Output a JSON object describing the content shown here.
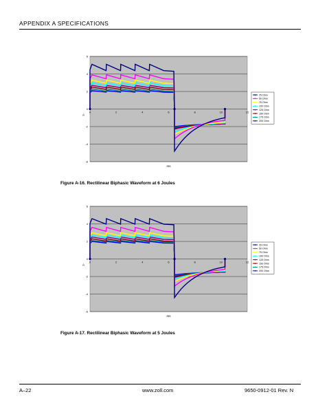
{
  "header": {
    "title": "APPENDIX A   SPECIFICATIONS"
  },
  "figures": [
    {
      "caption": "Figure A-16.    Rectilinear Biphasic Waveform at 6 Joules"
    },
    {
      "caption": "Figure A-17.    Rectilinear Biphasic Waveform at 5 Joules"
    }
  ],
  "footer": {
    "left": "A–22",
    "center": "www.zoll.com",
    "right": "9650-0912-01 Rev. N"
  },
  "chart_data": [
    {
      "type": "line",
      "title": "",
      "xlabel": "ms",
      "ylabel": "A",
      "xlim": [
        0,
        12
      ],
      "ylim": [
        -6,
        6
      ],
      "x_ticks": [
        "0",
        "2",
        "4",
        "6",
        "8",
        "10",
        "12"
      ],
      "y_ticks": [
        "-6",
        "-4",
        "-2",
        "0",
        "2",
        "4",
        "6"
      ],
      "grid": true,
      "legend_position": "right",
      "background": "#c0c0c0",
      "series": [
        {
          "name": "25 Ohm",
          "color": "#000080",
          "peak": 5.1,
          "end": 4.3,
          "neg_start": -4.8,
          "neg_end": -1.0
        },
        {
          "name": "50 Ohm",
          "color": "#ff00ff",
          "peak": 3.9,
          "end": 3.4,
          "neg_start": -3.4,
          "neg_end": -1.3
        },
        {
          "name": "75 Ohm",
          "color": "#ffff00",
          "peak": 3.3,
          "end": 2.9,
          "neg_start": -2.9,
          "neg_end": -1.5
        },
        {
          "name": "100 Ohm",
          "color": "#00ffff",
          "peak": 3.0,
          "end": 2.6,
          "neg_start": -2.6,
          "neg_end": -1.6
        },
        {
          "name": "125 Ohm",
          "color": "#800080",
          "peak": 2.7,
          "end": 2.4,
          "neg_start": -2.3,
          "neg_end": -1.7
        },
        {
          "name": "150 Ohm",
          "color": "#800000",
          "peak": 2.5,
          "end": 2.2,
          "neg_start": -2.2,
          "neg_end": -1.7
        },
        {
          "name": "175 Ohm",
          "color": "#008080",
          "peak": 2.3,
          "end": 2.0,
          "neg_start": -2.1,
          "neg_end": -1.7
        },
        {
          "name": "200 Ohm",
          "color": "#0000ff",
          "peak": 2.1,
          "end": 1.9,
          "neg_start": -2.0,
          "neg_end": -1.7
        }
      ]
    },
    {
      "type": "line",
      "title": "",
      "xlabel": "ms",
      "ylabel": "A",
      "xlim": [
        0,
        12
      ],
      "ylim": [
        -6,
        6
      ],
      "x_ticks": [
        "0",
        "2",
        "4",
        "6",
        "8",
        "10",
        "12"
      ],
      "y_ticks": [
        "-6",
        "-4",
        "-2",
        "0",
        "2",
        "4",
        "6"
      ],
      "grid": true,
      "legend_position": "right",
      "background": "#c0c0c0",
      "series": [
        {
          "name": "25 Ohm",
          "color": "#000080",
          "peak": 4.6,
          "end": 3.9,
          "neg_start": -4.4,
          "neg_end": -0.9
        },
        {
          "name": "50 Ohm",
          "color": "#ff00ff",
          "peak": 3.6,
          "end": 3.1,
          "neg_start": -3.1,
          "neg_end": -1.2
        },
        {
          "name": "75 Ohm",
          "color": "#ffff00",
          "peak": 3.0,
          "end": 2.6,
          "neg_start": -2.6,
          "neg_end": -1.3
        },
        {
          "name": "100 Ohm",
          "color": "#00ffff",
          "peak": 2.7,
          "end": 2.4,
          "neg_start": -2.3,
          "neg_end": -1.4
        },
        {
          "name": "125 Ohm",
          "color": "#800080",
          "peak": 2.5,
          "end": 2.2,
          "neg_start": -2.1,
          "neg_end": -1.5
        },
        {
          "name": "150 Ohm",
          "color": "#800000",
          "peak": 2.3,
          "end": 2.0,
          "neg_start": -2.0,
          "neg_end": -1.5
        },
        {
          "name": "175 Ohm",
          "color": "#008080",
          "peak": 2.1,
          "end": 1.9,
          "neg_start": -1.9,
          "neg_end": -1.5
        },
        {
          "name": "200 Ohm",
          "color": "#0000ff",
          "peak": 2.0,
          "end": 1.8,
          "neg_start": -1.8,
          "neg_end": -1.5
        }
      ]
    }
  ]
}
